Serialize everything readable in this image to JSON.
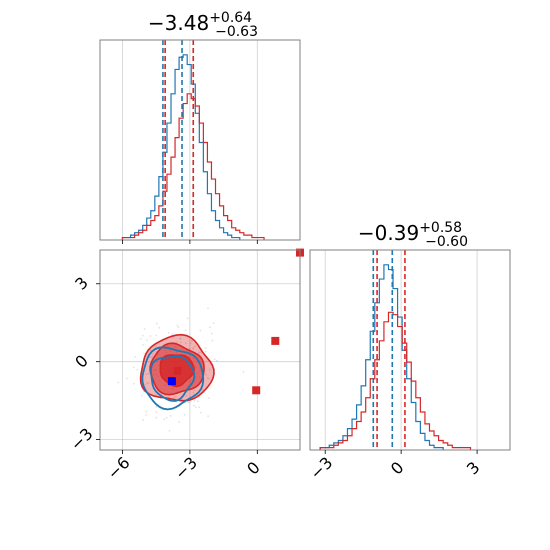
{
  "colors": {
    "blue": "#1f77b4",
    "red": "#d62728",
    "grid": "#b0b0b0",
    "frame": "#808080"
  },
  "chart_data": [
    {
      "type": "histogram",
      "panel": "top-left",
      "title": {
        "main": "−3.48",
        "sup": "+0.64",
        "sub": "−0.63"
      },
      "xlim": [
        -7,
        1.9
      ],
      "x_ticks": [
        -6,
        -3,
        0
      ],
      "series": [
        {
          "color": "#1f77b4",
          "bin_start": -6.0,
          "bin_width": 0.18,
          "counts": [
            1,
            1,
            2,
            3,
            4,
            6,
            9,
            12,
            18,
            26,
            36,
            48,
            60,
            70,
            75,
            76,
            72,
            64,
            52,
            40,
            28,
            19,
            12,
            8,
            5,
            3,
            2,
            1,
            1
          ]
        },
        {
          "color": "#d62728",
          "bin_start": -6.0,
          "bin_width": 0.18,
          "counts": [
            1,
            1,
            1,
            2,
            3,
            4,
            6,
            8,
            10,
            14,
            20,
            27,
            34,
            42,
            50,
            56,
            60,
            58,
            55,
            48,
            40,
            32,
            25,
            19,
            14,
            10,
            8,
            5,
            4,
            3,
            2,
            2,
            1,
            1,
            1
          ]
        }
      ],
      "quantile_lines": [
        {
          "color": "#1f77b4",
          "x": -4.2
        },
        {
          "color": "#1f77b4",
          "x": -3.35
        },
        {
          "color": "#d62728",
          "x": -4.1
        },
        {
          "color": "#d62728",
          "x": -2.85
        }
      ]
    },
    {
      "type": "contour-scatter",
      "panel": "bottom-left",
      "xlim": [
        -7,
        1.9
      ],
      "ylim": [
        -3.4,
        4.3
      ],
      "x_ticks": [
        -6,
        -3,
        0
      ],
      "y_ticks": [
        -3,
        0,
        3
      ],
      "x_tick_labels": [
        "−6",
        "−3",
        "0"
      ],
      "y_tick_labels": [
        "−3",
        "0",
        "3"
      ],
      "red_contours": [
        {
          "center": [
            -3.6,
            -0.3
          ],
          "radii": [
            1.6,
            1.25
          ],
          "opacity": 0.35
        },
        {
          "center": [
            -3.6,
            -0.3
          ],
          "radii": [
            1.2,
            0.95
          ],
          "opacity": 0.55
        },
        {
          "center": [
            -3.6,
            -0.3
          ],
          "radii": [
            0.75,
            0.6
          ],
          "opacity": 0.8
        }
      ],
      "blue_contours": [
        {
          "center": [
            -3.8,
            -0.6
          ],
          "radii": [
            1.35,
            1.15
          ]
        },
        {
          "center": [
            -3.8,
            -0.6
          ],
          "radii": [
            0.95,
            0.85
          ]
        }
      ],
      "markers": [
        {
          "color": "#d62728",
          "x": 0.8,
          "y": 0.8
        },
        {
          "color": "#d62728",
          "x": -0.05,
          "y": -1.1
        },
        {
          "color": "#d62728",
          "x": 1.9,
          "y": 4.2
        },
        {
          "color": "#d62728",
          "x": -3.55,
          "y": -0.35
        },
        {
          "color": "#0000ff",
          "x": -3.8,
          "y": -0.75
        }
      ]
    },
    {
      "type": "histogram",
      "panel": "bottom-right",
      "title": {
        "main": "−0.39",
        "sup": "+0.58",
        "sub": "−0.60"
      },
      "xlim": [
        -3.6,
        4.3
      ],
      "x_ticks": [
        -3,
        0,
        3
      ],
      "x_tick_labels": [
        "−3",
        "0",
        "3"
      ],
      "series": [
        {
          "color": "#1f77b4",
          "bin_start": -3.2,
          "bin_width": 0.18,
          "counts": [
            1,
            1,
            2,
            3,
            4,
            6,
            9,
            13,
            19,
            27,
            38,
            50,
            62,
            72,
            78,
            76,
            68,
            56,
            42,
            30,
            20,
            12,
            7,
            4,
            2,
            1,
            1
          ]
        },
        {
          "color": "#d62728",
          "bin_start": -3.2,
          "bin_width": 0.18,
          "counts": [
            1,
            1,
            1,
            2,
            3,
            4,
            6,
            9,
            12,
            16,
            22,
            30,
            38,
            46,
            54,
            58,
            57,
            52,
            45,
            37,
            29,
            22,
            16,
            11,
            8,
            6,
            4,
            3,
            2,
            1,
            1,
            1,
            1
          ]
        }
      ],
      "quantile_lines": [
        {
          "color": "#1f77b4",
          "x": -1.1
        },
        {
          "color": "#1f77b4",
          "x": -0.35
        },
        {
          "color": "#d62728",
          "x": -0.95
        },
        {
          "color": "#d62728",
          "x": 0.15
        }
      ]
    }
  ]
}
